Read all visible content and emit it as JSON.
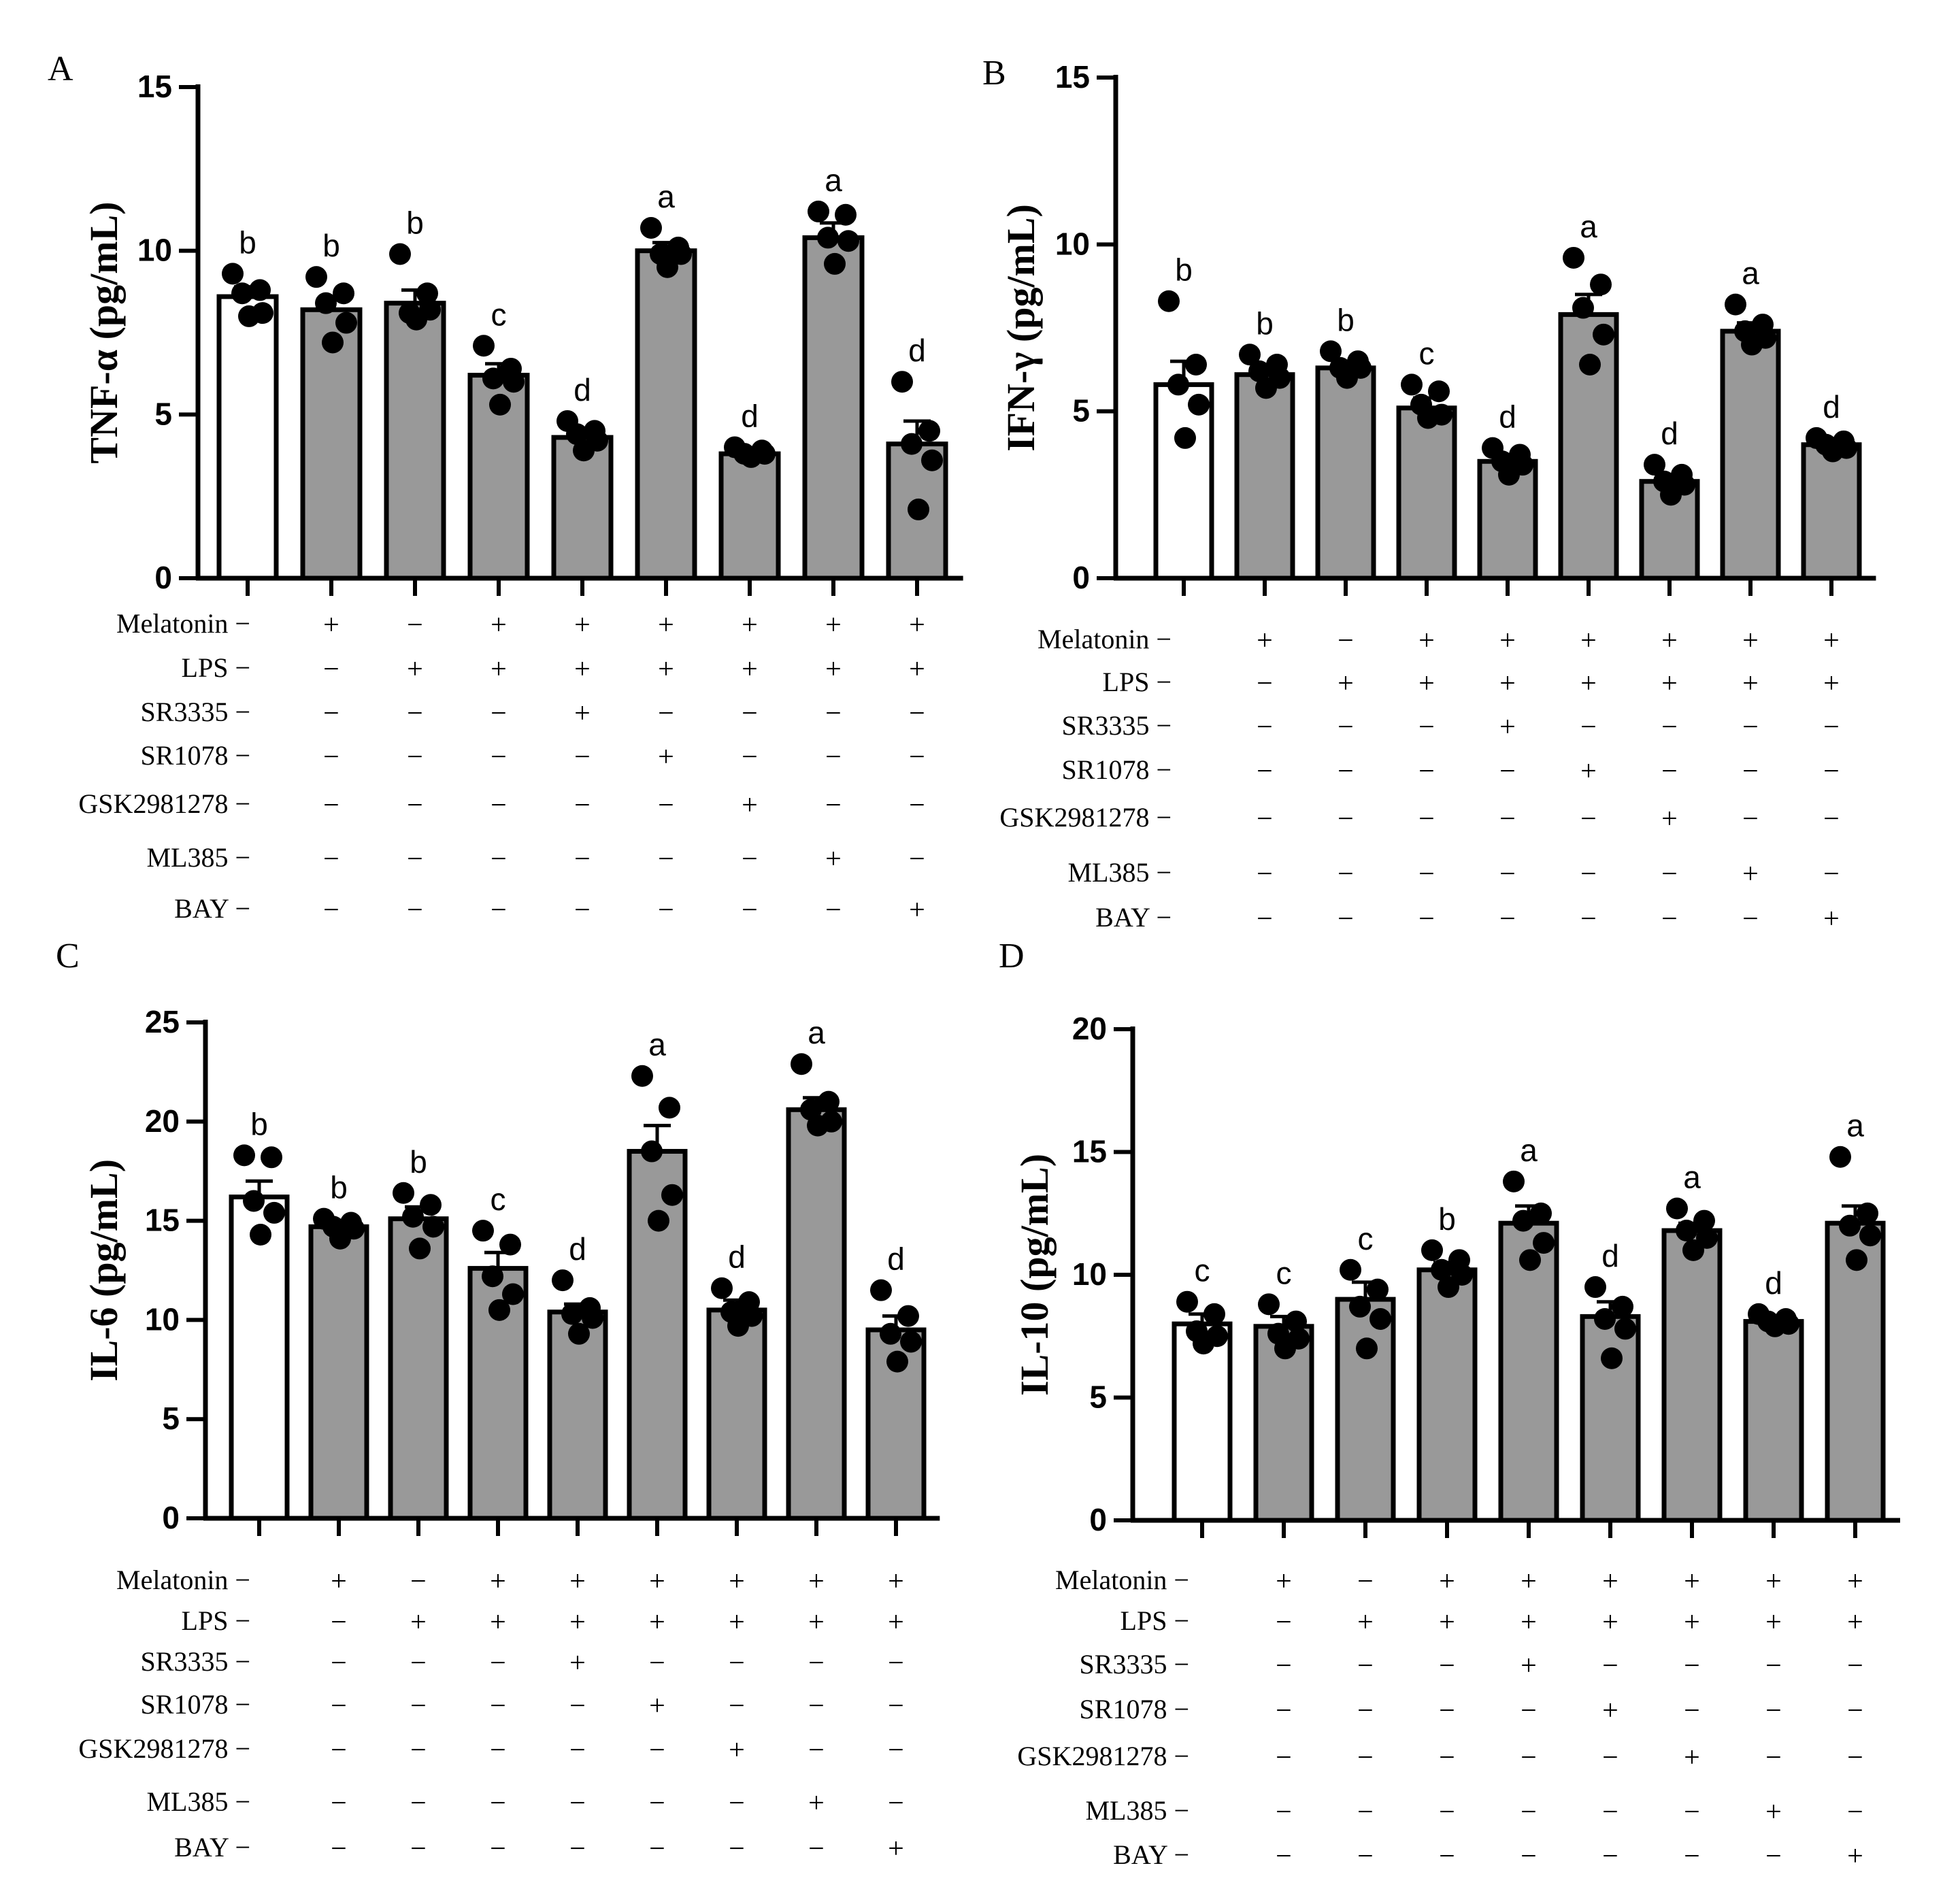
{
  "chart_data": [
    {
      "panel": "A",
      "type": "bar",
      "ylabel": "TNF-α (pg/mL)",
      "ylim": [
        0,
        15
      ],
      "yticks": [
        0,
        5,
        10,
        15
      ],
      "ytick_labels": [
        "0",
        "5",
        "10",
        "15"
      ],
      "values": [
        8.6,
        8.2,
        8.4,
        6.2,
        4.3,
        10.0,
        3.8,
        10.4,
        4.1
      ],
      "errors": [
        0.3,
        0.35,
        0.4,
        0.35,
        0.2,
        0.25,
        0.15,
        0.45,
        0.7
      ],
      "points": [
        [
          9.3,
          8.8,
          8.7,
          8.1,
          8.0
        ],
        [
          9.2,
          8.7,
          8.4,
          7.8,
          7.2
        ],
        [
          9.9,
          8.7,
          8.1,
          8.2,
          7.9
        ],
        [
          7.1,
          6.4,
          6.1,
          6.0,
          5.3
        ],
        [
          4.8,
          4.5,
          4.4,
          4.2,
          3.9
        ],
        [
          10.7,
          10.1,
          9.9,
          9.9,
          9.5
        ],
        [
          4.0,
          3.9,
          3.8,
          3.8,
          3.7
        ],
        [
          11.2,
          11.1,
          10.4,
          10.3,
          9.6
        ],
        [
          6.0,
          4.5,
          4.1,
          3.6,
          2.1
        ]
      ],
      "letters": [
        "b",
        "b",
        "b",
        "c",
        "d",
        "a",
        "d",
        "a",
        "d"
      ],
      "bar_colors": [
        "#ffffff",
        "#999999",
        "#999999",
        "#999999",
        "#999999",
        "#999999",
        "#999999",
        "#999999",
        "#999999"
      ]
    },
    {
      "panel": "B",
      "type": "bar",
      "ylabel": "IFN-γ (pg/mL)",
      "ylim": [
        0,
        15
      ],
      "yticks": [
        0,
        5,
        10,
        15
      ],
      "ytick_labels": [
        "0",
        "5",
        "10",
        "15"
      ],
      "values": [
        5.8,
        6.1,
        6.3,
        5.1,
        3.5,
        7.9,
        2.9,
        7.4,
        4.0
      ],
      "errors": [
        0.7,
        0.25,
        0.2,
        0.3,
        0.2,
        0.6,
        0.2,
        0.25,
        0.1
      ],
      "points": [
        [
          8.3,
          6.4,
          5.8,
          5.2,
          4.2
        ],
        [
          6.7,
          6.4,
          6.2,
          6.0,
          5.7
        ],
        [
          6.8,
          6.5,
          6.3,
          6.3,
          6.0
        ],
        [
          5.8,
          5.6,
          5.2,
          4.9,
          4.8
        ],
        [
          3.9,
          3.7,
          3.5,
          3.4,
          3.1
        ],
        [
          9.6,
          8.8,
          8.1,
          7.3,
          6.4
        ],
        [
          3.4,
          3.1,
          2.9,
          2.8,
          2.5
        ],
        [
          8.2,
          7.6,
          7.4,
          7.2,
          7.0
        ],
        [
          4.2,
          4.1,
          4.0,
          3.9,
          3.8
        ]
      ],
      "letters": [
        "b",
        "b",
        "b",
        "c",
        "d",
        "a",
        "d",
        "a",
        "d"
      ],
      "bar_colors": [
        "#ffffff",
        "#999999",
        "#999999",
        "#999999",
        "#999999",
        "#999999",
        "#999999",
        "#999999",
        "#999999"
      ]
    },
    {
      "panel": "C",
      "type": "bar",
      "ylabel": "IL-6 (pg/mL)",
      "ylim": [
        0,
        25
      ],
      "yticks": [
        0,
        5,
        10,
        15,
        20,
        25
      ],
      "ytick_labels": [
        "0",
        "5",
        "10",
        "15",
        "20",
        "25"
      ],
      "values": [
        16.2,
        14.7,
        15.1,
        12.6,
        10.4,
        18.5,
        10.5,
        20.6,
        9.5
      ],
      "errors": [
        0.8,
        0.3,
        0.6,
        0.8,
        0.4,
        1.3,
        0.5,
        0.6,
        0.7
      ],
      "points": [
        [
          18.3,
          18.2,
          16.0,
          15.4,
          14.3
        ],
        [
          15.1,
          14.9,
          14.7,
          14.6,
          14.1
        ],
        [
          16.4,
          15.8,
          15.2,
          14.7,
          13.6
        ],
        [
          14.5,
          13.8,
          12.2,
          11.3,
          10.5
        ],
        [
          12.0,
          10.6,
          10.3,
          10.1,
          9.3
        ],
        [
          22.3,
          20.7,
          18.5,
          16.3,
          15.0
        ],
        [
          11.6,
          10.9,
          10.4,
          10.2,
          9.7
        ],
        [
          22.9,
          21.0,
          20.6,
          20.0,
          19.8
        ],
        [
          11.5,
          10.2,
          9.3,
          8.9,
          7.9
        ]
      ],
      "letters": [
        "b",
        "b",
        "b",
        "c",
        "d",
        "a",
        "d",
        "a",
        "d"
      ],
      "bar_colors": [
        "#ffffff",
        "#999999",
        "#999999",
        "#999999",
        "#999999",
        "#999999",
        "#999999",
        "#999999",
        "#999999"
      ]
    },
    {
      "panel": "D",
      "type": "bar",
      "ylabel": "IL-10 (pg/mL)",
      "ylim": [
        0,
        20
      ],
      "yticks": [
        0,
        5,
        10,
        15,
        20
      ],
      "ytick_labels": [
        "0",
        "5",
        "10",
        "15",
        "20"
      ],
      "values": [
        8.0,
        7.9,
        9.0,
        10.2,
        12.1,
        8.3,
        11.8,
        8.1,
        12.1
      ],
      "errors": [
        0.4,
        0.4,
        0.7,
        0.3,
        0.7,
        0.6,
        0.3,
        0.2,
        0.7
      ],
      "points": [
        [
          8.9,
          8.4,
          7.7,
          7.5,
          7.2
        ],
        [
          8.8,
          8.1,
          7.6,
          7.4,
          7.0
        ],
        [
          10.2,
          9.4,
          8.7,
          8.2,
          7.0
        ],
        [
          11.0,
          10.6,
          10.2,
          10.0,
          9.5
        ],
        [
          13.8,
          12.5,
          12.2,
          11.3,
          10.6
        ],
        [
          9.5,
          8.7,
          8.2,
          7.8,
          6.6
        ],
        [
          12.7,
          12.2,
          11.8,
          11.5,
          11.0
        ],
        [
          8.4,
          8.2,
          8.1,
          8.0,
          7.9
        ],
        [
          14.8,
          12.5,
          12.0,
          11.6,
          10.6
        ]
      ],
      "letters": [
        "c",
        "c",
        "c",
        "b",
        "a",
        "d",
        "a",
        "d",
        "a"
      ],
      "bar_colors": [
        "#ffffff",
        "#999999",
        "#999999",
        "#999999",
        "#999999",
        "#999999",
        "#999999",
        "#999999",
        "#999999"
      ]
    }
  ],
  "treatments": [
    {
      "name": "Melatonin",
      "signs": [
        "−",
        "+",
        "−",
        "+",
        "+",
        "+",
        "+",
        "+",
        "+"
      ]
    },
    {
      "name": "LPS",
      "signs": [
        "−",
        "−",
        "+",
        "+",
        "+",
        "+",
        "+",
        "+",
        "+"
      ]
    },
    {
      "name": "SR3335",
      "signs": [
        "−",
        "−",
        "−",
        "−",
        "+",
        "−",
        "−",
        "−",
        "−"
      ]
    },
    {
      "name": "SR1078",
      "signs": [
        "−",
        "−",
        "−",
        "−",
        "−",
        "+",
        "−",
        "−",
        "−"
      ]
    },
    {
      "name": "GSK2981278",
      "signs": [
        "−",
        "−",
        "−",
        "−",
        "−",
        "−",
        "+",
        "−",
        "−"
      ]
    },
    {
      "name": "ML385",
      "signs": [
        "−",
        "−",
        "−",
        "−",
        "−",
        "−",
        "−",
        "+",
        "−"
      ]
    },
    {
      "name": "BAY",
      "signs": [
        "−",
        "−",
        "−",
        "−",
        "−",
        "−",
        "−",
        "−",
        "+"
      ]
    }
  ]
}
